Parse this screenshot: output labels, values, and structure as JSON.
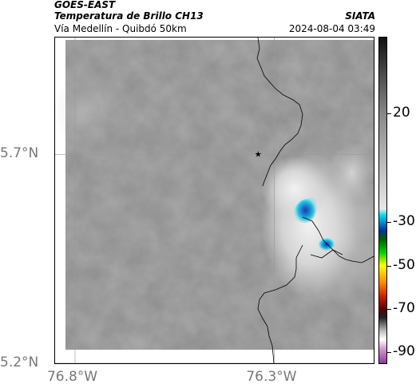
{
  "header": {
    "satellite": "GOES-EAST",
    "product": "Temperatura de Brillo CH13",
    "organization": "SIATA",
    "region": "Vía Medellín - Quibdó 50km",
    "timestamp": "2024-08-04 03:49"
  },
  "map": {
    "lon_range": [
      -76.85,
      -76.05
    ],
    "lat_range": [
      5.2,
      5.98
    ],
    "lon_ticks": [
      -76.8,
      -76.3
    ],
    "lon_tick_labels": [
      "76.8°W",
      "76.3°W"
    ],
    "lat_ticks": [
      5.2,
      5.7
    ],
    "lat_tick_labels": [
      "5.2°N",
      "5.7°N"
    ],
    "gridlines": true,
    "marker": {
      "lon": -76.34,
      "lat": 5.7,
      "symbol": "star"
    },
    "colors": {
      "cloud_cold": "#1a4fb0",
      "cloud_cyan": "#22c8e0",
      "land_gray": "#8a8a8a",
      "border": "#000000"
    }
  },
  "colorbar": {
    "tick_values": [
      20,
      -30,
      -50,
      -70,
      -90
    ],
    "tick_labels": [
      "20",
      "-30",
      "-50",
      "-70",
      "-90"
    ],
    "range": [
      -95,
      55
    ],
    "stops": [
      {
        "t": -95,
        "c": "#8b3a9c"
      },
      {
        "t": -88,
        "c": "#d9a0d0"
      },
      {
        "t": -84,
        "c": "#ffffff"
      },
      {
        "t": -80,
        "c": "#bbbbbb"
      },
      {
        "t": -74,
        "c": "#222222"
      },
      {
        "t": -70,
        "c": "#600000"
      },
      {
        "t": -64,
        "c": "#cc2200"
      },
      {
        "t": -58,
        "c": "#ff8800"
      },
      {
        "t": -50,
        "c": "#ffff00"
      },
      {
        "t": -44,
        "c": "#00d000"
      },
      {
        "t": -38,
        "c": "#006000"
      },
      {
        "t": -34,
        "c": "#0030a0"
      },
      {
        "t": -27,
        "c": "#00d8e8"
      },
      {
        "t": -24,
        "c": "#e8e8e8"
      },
      {
        "t": 20,
        "c": "#888888"
      },
      {
        "t": 55,
        "c": "#111111"
      }
    ]
  }
}
